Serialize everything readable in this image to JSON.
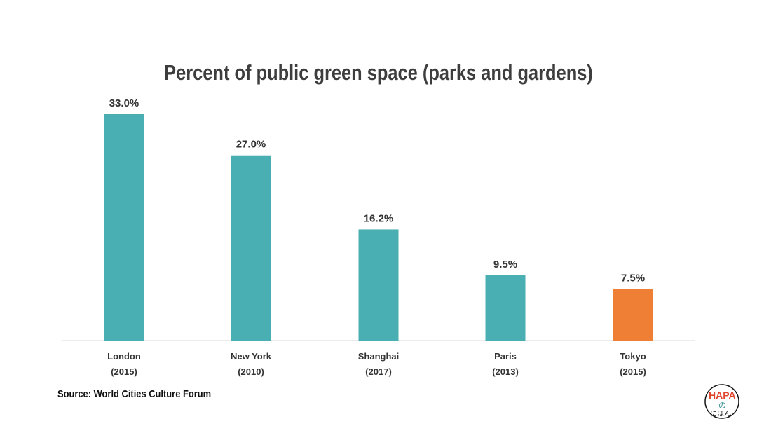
{
  "chart_data": {
    "type": "bar",
    "title": "Percent of public green space (parks and gardens)",
    "categories": [
      "London",
      "New York",
      "Shanghai",
      "Paris",
      "Tokyo"
    ],
    "category_years": [
      "(2015)",
      "(2010)",
      "(2017)",
      "(2013)",
      "(2015)"
    ],
    "values": [
      33.0,
      27.0,
      16.2,
      9.5,
      7.5
    ],
    "value_labels": [
      "33.0%",
      "27.0%",
      "16.2%",
      "9.5%",
      "7.5%"
    ],
    "bar_colors": [
      "#4aafb2",
      "#4aafb2",
      "#4aafb2",
      "#4aafb2",
      "#ee7f35"
    ],
    "highlight_color": "#ee7f35",
    "base_color": "#4aafb2",
    "ylim": [
      0,
      33
    ],
    "grid": false,
    "xlabel": "",
    "ylabel": ""
  },
  "source": "Source: World Cities Culture Forum",
  "logo": {
    "text_top": "HAPA",
    "text_mid": "の",
    "text_bottom": "にほん"
  }
}
